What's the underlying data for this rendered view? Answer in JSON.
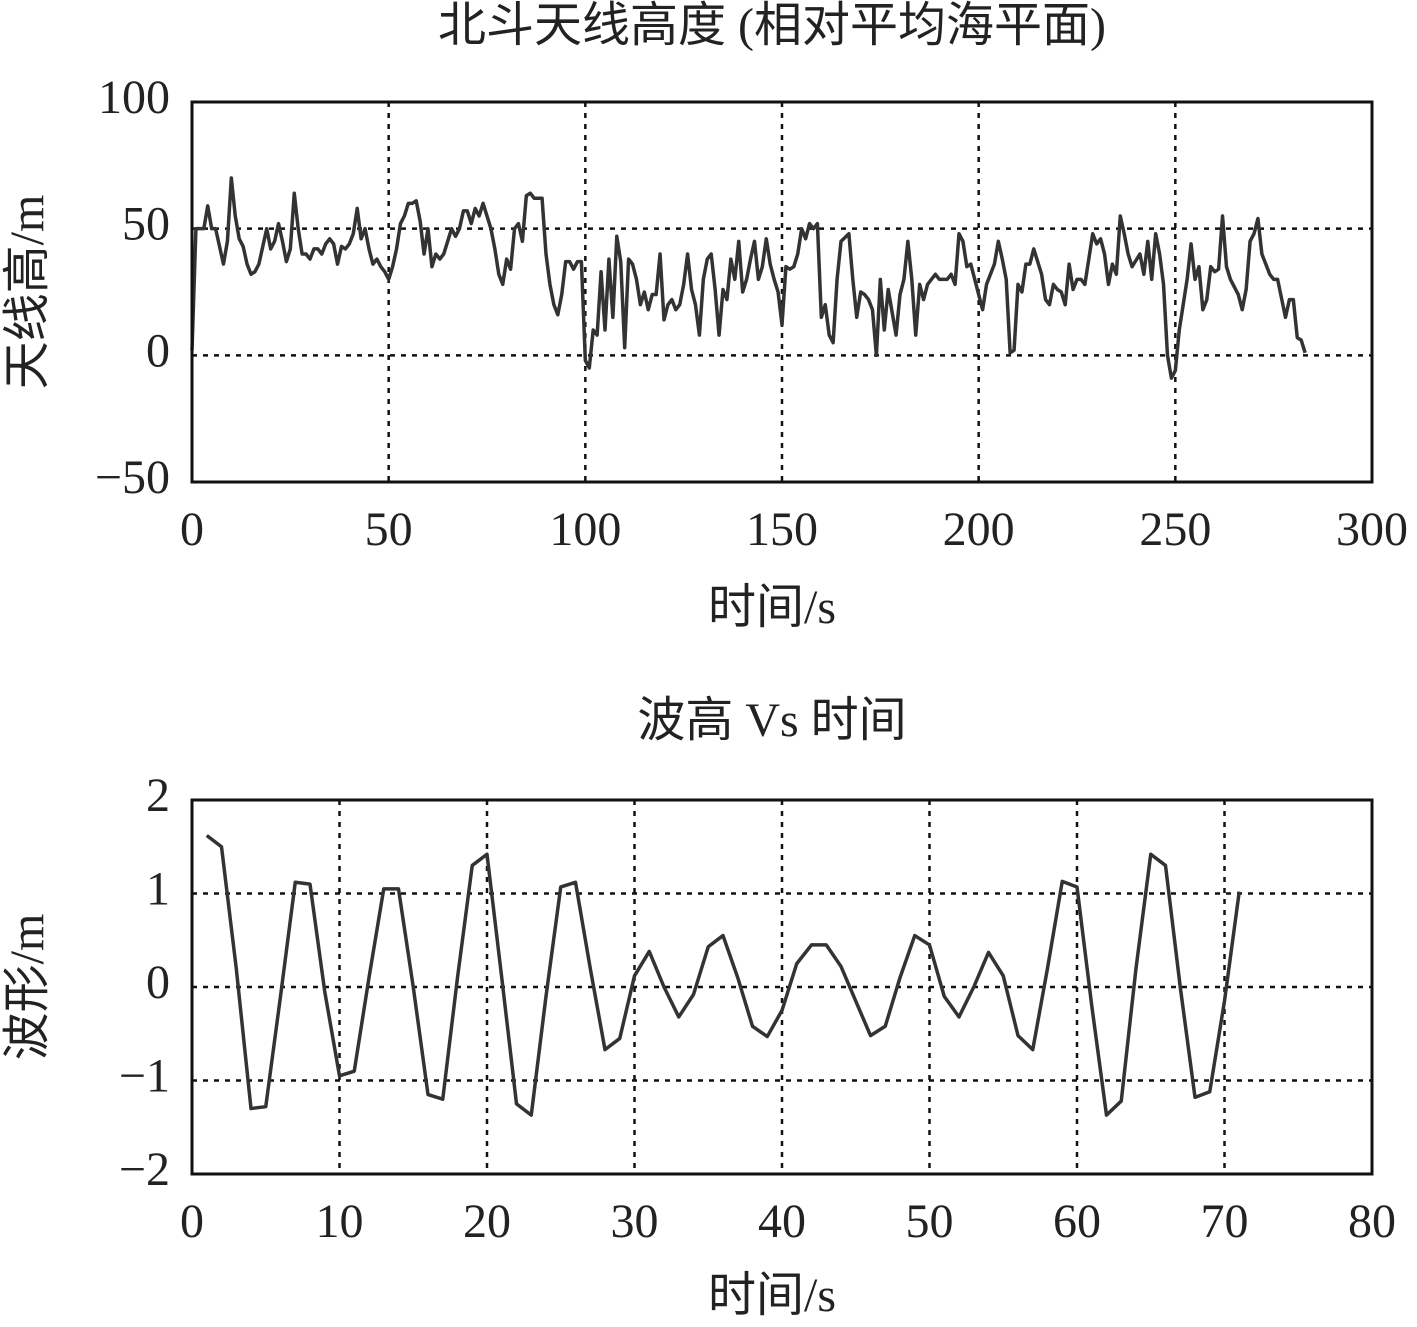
{
  "chart_data": [
    {
      "type": "line",
      "title": "北斗天线高度 (相对平均海平面)",
      "xlabel": "时间/s",
      "ylabel": "天线高/m",
      "color": "#333333",
      "grid": true,
      "xlim": [
        0,
        300
      ],
      "xticks": [
        0,
        50,
        100,
        150,
        200,
        250,
        300
      ],
      "ylim": [
        -50,
        100
      ],
      "yticks": [
        {
          "value": -50,
          "label": "−50"
        },
        0,
        50,
        100
      ],
      "x": [
        0,
        1,
        2,
        3,
        4,
        5,
        6,
        7,
        8,
        9,
        10,
        11,
        12,
        13,
        14,
        15,
        16,
        17,
        18,
        19,
        20,
        21,
        22,
        23,
        24,
        25,
        26,
        27,
        28,
        29,
        30,
        31,
        32,
        33,
        34,
        35,
        36,
        37,
        38,
        39,
        40,
        41,
        42,
        43,
        44,
        45,
        46,
        47,
        48,
        49,
        50,
        51,
        52,
        53,
        54,
        55,
        56,
        57,
        58,
        59,
        60,
        61,
        62,
        63,
        64,
        65,
        66,
        67,
        68,
        69,
        70,
        71,
        72,
        73,
        74,
        75,
        76,
        77,
        78,
        79,
        80,
        81,
        82,
        83,
        84,
        85,
        86,
        87,
        88,
        89,
        90,
        91,
        92,
        93,
        94,
        95,
        96,
        97,
        98,
        99,
        100,
        101,
        102,
        103,
        104,
        105,
        106,
        107,
        108,
        109,
        110,
        111,
        112,
        113,
        114,
        115,
        116,
        117,
        118,
        119,
        120,
        121,
        122,
        123,
        124,
        125,
        126,
        127,
        128,
        129,
        130,
        131,
        132,
        133,
        134,
        135,
        136,
        137,
        138,
        139,
        140,
        141,
        142,
        143,
        144,
        145,
        146,
        147,
        148,
        149,
        150,
        151,
        152,
        153,
        154,
        155,
        156,
        157,
        158,
        159,
        160,
        161,
        162,
        163,
        164,
        165,
        167,
        168,
        169,
        170,
        171,
        172,
        173,
        174,
        175,
        176,
        177,
        179,
        180,
        181,
        182,
        183,
        184,
        185,
        186,
        187,
        188,
        189,
        190,
        192,
        193,
        194,
        195,
        196,
        197,
        198,
        199,
        200,
        201,
        202,
        204,
        205,
        206,
        207,
        208,
        209,
        210,
        211,
        212,
        213,
        214,
        216,
        217,
        218,
        219,
        220,
        221,
        222,
        223,
        224,
        225,
        226,
        227,
        229,
        230,
        231,
        232,
        233,
        234,
        235,
        236,
        237,
        238,
        239,
        241,
        242,
        243,
        244,
        245,
        246,
        247,
        248,
        249,
        250,
        251,
        253,
        254,
        255,
        256,
        257,
        258,
        259,
        260,
        261,
        262,
        263,
        264,
        266,
        267,
        268,
        269,
        270,
        271,
        272,
        273,
        274,
        275,
        276,
        278,
        279,
        280,
        281,
        282,
        283
      ],
      "values": [
        2,
        50,
        50,
        50,
        59,
        50,
        50,
        43,
        36,
        45,
        70,
        55,
        46,
        43,
        36,
        32,
        33,
        36,
        43,
        50,
        42,
        45,
        52,
        45,
        37,
        42,
        64,
        50,
        40,
        40,
        38,
        42,
        42,
        40,
        44,
        46,
        44,
        36,
        43,
        42,
        44,
        48,
        58,
        46,
        50,
        42,
        36,
        38,
        35,
        33,
        30,
        35,
        42,
        52,
        55,
        60,
        60,
        61,
        53,
        40,
        50,
        35,
        40,
        38,
        40,
        45,
        50,
        47,
        50,
        57,
        57,
        52,
        58,
        55,
        60,
        55,
        50,
        42,
        32,
        28,
        38,
        34,
        50,
        52,
        45,
        63,
        64,
        62,
        62,
        62,
        40,
        28,
        20,
        16,
        24,
        37,
        37,
        34,
        37,
        37,
        -2,
        -5,
        10,
        8,
        33,
        10,
        38,
        15,
        47,
        37,
        3,
        38,
        36,
        30,
        20,
        25,
        18,
        24,
        24,
        40,
        14,
        20,
        22,
        18,
        20,
        28,
        40,
        26,
        20,
        8,
        30,
        38,
        40,
        26,
        8,
        26,
        22,
        38,
        30,
        45,
        25,
        30,
        38,
        45,
        30,
        35,
        46,
        36,
        30,
        25,
        12,
        35,
        34,
        35,
        40,
        50,
        46,
        52,
        50,
        52,
        15,
        20,
        8,
        5,
        30,
        45,
        48,
        30,
        15,
        25,
        24,
        22,
        18,
        0,
        30,
        10,
        26,
        8,
        24,
        30,
        45,
        30,
        8,
        28,
        22,
        28,
        30,
        32,
        30,
        30,
        32,
        28,
        48,
        45,
        35,
        36,
        30,
        24,
        18,
        28,
        36,
        45,
        38,
        30,
        1,
        2,
        28,
        25,
        36,
        36,
        42,
        32,
        22,
        20,
        28,
        26,
        25,
        20,
        36,
        26,
        30,
        30,
        28,
        48,
        44,
        46,
        40,
        28,
        36,
        32,
        55,
        48,
        40,
        35,
        40,
        32,
        45,
        30,
        48,
        40,
        28,
        0,
        -9,
        -6,
        10,
        30,
        44,
        30,
        35,
        18,
        22,
        35,
        33,
        34,
        55,
        35,
        30,
        24,
        18,
        26,
        45,
        48,
        54,
        40,
        36,
        32,
        30,
        30,
        15,
        22,
        22,
        7,
        6,
        1
      ]
    },
    {
      "type": "line",
      "title": "波高 Vs 时间",
      "xlabel": "时间/s",
      "ylabel": "波形/m",
      "color": "#333333",
      "grid": true,
      "xlim": [
        0,
        80
      ],
      "xticks": [
        0,
        10,
        20,
        30,
        40,
        50,
        60,
        70,
        80
      ],
      "ylim": [
        -2,
        2
      ],
      "yticks": [
        {
          "value": -2,
          "label": "−2"
        },
        {
          "value": -1,
          "label": "−1"
        },
        0,
        1,
        2
      ],
      "x": [
        1,
        2,
        3,
        4,
        5,
        6,
        7,
        8,
        9,
        10,
        11,
        12,
        13,
        14,
        15,
        16,
        17,
        18,
        19,
        20,
        21,
        22,
        23,
        24,
        25,
        26,
        27,
        28,
        29,
        30,
        31,
        32,
        33,
        34,
        35,
        36,
        37,
        38,
        39,
        40,
        41,
        42,
        43,
        44,
        45,
        46,
        47,
        48,
        49,
        50,
        51,
        52,
        53,
        54,
        55,
        56,
        57,
        58,
        59,
        60,
        61,
        62,
        63,
        64,
        65,
        66,
        67,
        68,
        69,
        70,
        71
      ],
      "values": [
        1.62,
        1.5,
        0.2,
        -1.3,
        -1.28,
        -0.1,
        1.12,
        1.1,
        -0.05,
        -0.95,
        -0.9,
        0.1,
        1.05,
        1.05,
        0.0,
        -1.15,
        -1.2,
        0.1,
        1.3,
        1.42,
        0.1,
        -1.25,
        -1.37,
        -0.1,
        1.07,
        1.12,
        0.2,
        -0.67,
        -0.55,
        0.12,
        0.38,
        0.0,
        -0.32,
        -0.08,
        0.43,
        0.55,
        0.1,
        -0.42,
        -0.53,
        -0.25,
        0.25,
        0.45,
        0.45,
        0.22,
        -0.15,
        -0.52,
        -0.42,
        0.1,
        0.55,
        0.45,
        -0.1,
        -0.32,
        0.0,
        0.37,
        0.12,
        -0.52,
        -0.67,
        0.2,
        1.13,
        1.07,
        -0.2,
        -1.37,
        -1.22,
        0.2,
        1.42,
        1.3,
        0.0,
        -1.18,
        -1.12,
        -0.15,
        1.02
      ]
    }
  ]
}
